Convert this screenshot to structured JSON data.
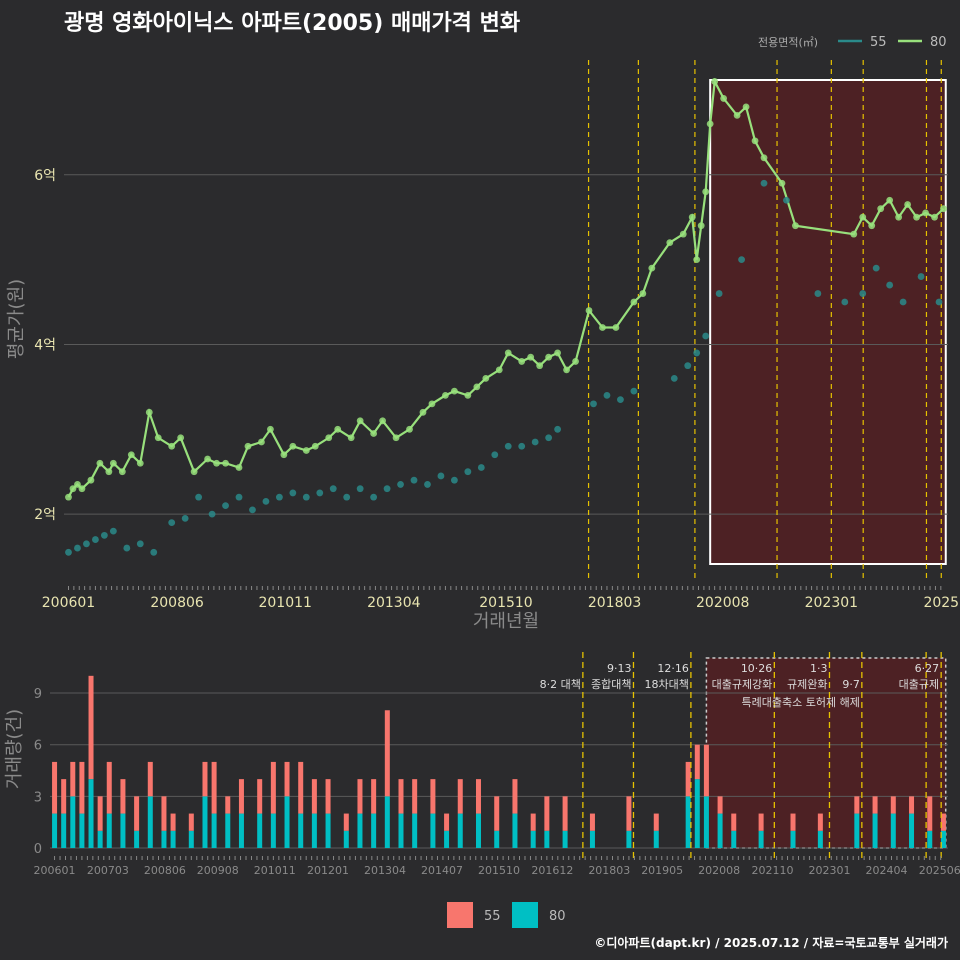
{
  "title": "광명 영화아이닉스 아파트(2005) 매매가격 변화",
  "footer": "©디아파트(dapt.kr) / 2025.07.12 / 자료=국토교통부 실거래가",
  "colors": {
    "background": "#2b2b2d",
    "series55": "#2a8a8a",
    "series80": "#98e07c",
    "bar55": "#f8766d",
    "bar80": "#00bfc4",
    "event_line": "#e6c200",
    "highlight_fill": "#5a1f22",
    "highlight_border": "#ffffff"
  },
  "legend_top": {
    "title": "전용면적(㎡)",
    "items": [
      "55",
      "80"
    ]
  },
  "legend_bottom": {
    "items": [
      "55",
      "80"
    ]
  },
  "chart_data": [
    {
      "type": "line",
      "title": "광명 영화아이닉스 아파트(2005) 매매가격 변화",
      "xlabel": "거래년월",
      "ylabel": "평균가(원)",
      "x_tick_labels": [
        "200601",
        "200806",
        "201011",
        "201304",
        "201510",
        "201803",
        "202008",
        "202301",
        "2025"
      ],
      "y_tick_labels": [
        "2억",
        "4억",
        "6억"
      ],
      "y_ticks": [
        2,
        4,
        6
      ],
      "ylim": [
        1.2,
        7.4
      ],
      "xlim": [
        2005.9,
        2025.6
      ],
      "y_unit": "억원",
      "grid": true,
      "legend_position": "top-right",
      "highlight_range": [
        2020.3,
        2025.55
      ],
      "event_lines": [
        2017.59,
        2018.7,
        2019.96,
        2021.79,
        2023.0,
        2023.71,
        2025.12,
        2025.45
      ],
      "series": [
        {
          "name": "80",
          "x": [
            2006.0,
            2006.1,
            2006.2,
            2006.3,
            2006.5,
            2006.7,
            2006.9,
            2007.0,
            2007.2,
            2007.4,
            2007.6,
            2007.8,
            2008.0,
            2008.3,
            2008.5,
            2008.8,
            2009.1,
            2009.3,
            2009.5,
            2009.8,
            2010.0,
            2010.3,
            2010.5,
            2010.8,
            2011.0,
            2011.3,
            2011.5,
            2011.8,
            2012.0,
            2012.3,
            2012.5,
            2012.8,
            2013.0,
            2013.3,
            2013.6,
            2013.9,
            2014.1,
            2014.4,
            2014.6,
            2014.9,
            2015.1,
            2015.3,
            2015.6,
            2015.8,
            2016.1,
            2016.3,
            2016.5,
            2016.7,
            2016.9,
            2017.1,
            2017.3,
            2017.6,
            2017.9,
            2018.2,
            2018.6,
            2018.8,
            2019.0,
            2019.4,
            2019.7,
            2019.9,
            2020.0,
            2020.1,
            2020.2,
            2020.3,
            2020.4,
            2020.6,
            2020.9,
            2021.1,
            2021.3,
            2021.5,
            2021.9,
            2022.2,
            2023.5,
            2023.7,
            2023.9,
            2024.1,
            2024.3,
            2024.5,
            2024.7,
            2024.9,
            2025.1,
            2025.3,
            2025.5
          ],
          "values": [
            2.2,
            2.3,
            2.35,
            2.3,
            2.4,
            2.6,
            2.5,
            2.6,
            2.5,
            2.7,
            2.6,
            3.2,
            2.9,
            2.8,
            2.9,
            2.5,
            2.65,
            2.6,
            2.6,
            2.55,
            2.8,
            2.85,
            3.0,
            2.7,
            2.8,
            2.75,
            2.8,
            2.9,
            3.0,
            2.9,
            3.1,
            2.95,
            3.1,
            2.9,
            3.0,
            3.2,
            3.3,
            3.4,
            3.45,
            3.4,
            3.5,
            3.6,
            3.7,
            3.9,
            3.8,
            3.85,
            3.75,
            3.85,
            3.9,
            3.7,
            3.8,
            4.4,
            4.2,
            4.2,
            4.5,
            4.6,
            4.9,
            5.2,
            5.3,
            5.5,
            5.0,
            5.4,
            5.8,
            6.6,
            7.1,
            6.9,
            6.7,
            6.8,
            6.4,
            6.2,
            5.9,
            5.4,
            5.3,
            5.5,
            5.4,
            5.6,
            5.7,
            5.5,
            5.65,
            5.5,
            5.55,
            5.5,
            5.6
          ]
        },
        {
          "name": "55",
          "x": [
            2006.0,
            2006.2,
            2006.4,
            2006.6,
            2006.8,
            2007.0,
            2007.3,
            2007.6,
            2007.9,
            2008.3,
            2008.6,
            2008.9,
            2009.2,
            2009.5,
            2009.8,
            2010.1,
            2010.4,
            2010.7,
            2011.0,
            2011.3,
            2011.6,
            2011.9,
            2012.2,
            2012.5,
            2012.8,
            2013.1,
            2013.4,
            2013.7,
            2014.0,
            2014.3,
            2014.6,
            2014.9,
            2015.2,
            2015.5,
            2015.8,
            2016.1,
            2016.4,
            2016.7,
            2016.9,
            2017.7,
            2018.0,
            2018.3,
            2018.6,
            2019.5,
            2019.8,
            2020.0,
            2020.2,
            2020.5,
            2021.0,
            2021.5,
            2022.0,
            2022.7,
            2023.3,
            2023.7,
            2024.0,
            2024.3,
            2024.6,
            2025.0,
            2025.4
          ],
          "values": [
            1.55,
            1.6,
            1.65,
            1.7,
            1.75,
            1.8,
            1.6,
            1.65,
            1.55,
            1.9,
            1.95,
            2.2,
            2.0,
            2.1,
            2.2,
            2.05,
            2.15,
            2.2,
            2.25,
            2.2,
            2.25,
            2.3,
            2.2,
            2.3,
            2.2,
            2.3,
            2.35,
            2.4,
            2.35,
            2.45,
            2.4,
            2.5,
            2.55,
            2.7,
            2.8,
            2.8,
            2.85,
            2.9,
            3.0,
            3.3,
            3.4,
            3.35,
            3.45,
            3.6,
            3.75,
            3.9,
            4.1,
            4.6,
            5.0,
            5.9,
            5.7,
            4.6,
            4.5,
            4.6,
            4.9,
            4.7,
            4.5,
            4.8,
            4.5
          ]
        }
      ]
    },
    {
      "type": "bar",
      "xlabel": "",
      "ylabel": "거래량(건)",
      "stacked": true,
      "y_ticks": [
        0,
        3,
        6,
        9
      ],
      "ylim": [
        0,
        11.5
      ],
      "xlim": [
        2005.9,
        2025.6
      ],
      "x_tick_labels": [
        "200601",
        "200703",
        "200806",
        "200908",
        "201011",
        "201201",
        "201304",
        "201407",
        "201510",
        "201612",
        "201803",
        "201905",
        "202008",
        "202110",
        "202301",
        "202404",
        "202506"
      ],
      "legend_position": "bottom",
      "highlight_range": [
        2020.3,
        2025.55
      ],
      "event_lines": [
        2017.59,
        2018.7,
        2019.96,
        2021.79,
        2023.0,
        2023.71,
        2025.12,
        2025.45
      ],
      "annotations": [
        {
          "label": "8·2 대책",
          "x": 2017.59,
          "row": 1
        },
        {
          "label": "9·13",
          "x": 2018.7,
          "row": 0
        },
        {
          "label": "종합대책",
          "x": 2018.7,
          "row": 1
        },
        {
          "label": "12·16",
          "x": 2019.96,
          "row": 0
        },
        {
          "label": "18차대책",
          "x": 2019.96,
          "row": 1
        },
        {
          "label": "10·26",
          "x": 2021.79,
          "row": 0
        },
        {
          "label": "대출규제강화",
          "x": 2021.79,
          "row": 1
        },
        {
          "label": "1·3",
          "x": 2023.0,
          "row": 0
        },
        {
          "label": "규제완화",
          "x": 2023.0,
          "row": 1
        },
        {
          "label": "9·7",
          "x": 2023.71,
          "row": 1
        },
        {
          "label": "특례대출축소 토허제 해제",
          "x": 2023.71,
          "row": 2
        },
        {
          "label": "6·27",
          "x": 2025.45,
          "row": 0
        },
        {
          "label": "대출규제",
          "x": 2025.45,
          "row": 1
        }
      ],
      "series": [
        {
          "name": "55",
          "x": [
            2006.0,
            2006.2,
            2006.4,
            2006.6,
            2006.8,
            2007.0,
            2007.2,
            2007.5,
            2007.8,
            2008.1,
            2008.4,
            2008.6,
            2009.0,
            2009.3,
            2009.5,
            2009.8,
            2010.1,
            2010.5,
            2010.8,
            2011.1,
            2011.4,
            2011.7,
            2012.0,
            2012.4,
            2012.7,
            2013.0,
            2013.3,
            2013.6,
            2013.9,
            2014.3,
            2014.6,
            2014.9,
            2015.3,
            2015.7,
            2016.1,
            2016.5,
            2016.8,
            2017.2,
            2017.8,
            2018.6,
            2019.2,
            2019.9,
            2020.1,
            2020.3,
            2020.6,
            2020.9,
            2021.5,
            2022.2,
            2022.8,
            2023.6,
            2024.0,
            2024.4,
            2024.8,
            2025.2,
            2025.5
          ],
          "values": [
            3,
            2,
            2,
            3,
            6,
            2,
            3,
            2,
            2,
            2,
            2,
            1,
            1,
            2,
            3,
            1,
            2,
            2,
            3,
            2,
            3,
            2,
            2,
            1,
            2,
            2,
            5,
            2,
            2,
            2,
            1,
            2,
            2,
            2,
            2,
            1,
            2,
            2,
            1,
            2,
            1,
            2,
            2,
            3,
            1,
            1,
            1,
            1,
            1,
            1,
            1,
            1,
            1,
            2,
            1
          ]
        },
        {
          "name": "80",
          "x": [
            2006.0,
            2006.2,
            2006.4,
            2006.6,
            2006.8,
            2007.0,
            2007.2,
            2007.5,
            2007.8,
            2008.1,
            2008.4,
            2008.6,
            2009.0,
            2009.3,
            2009.5,
            2009.8,
            2010.1,
            2010.5,
            2010.8,
            2011.1,
            2011.4,
            2011.7,
            2012.0,
            2012.4,
            2012.7,
            2013.0,
            2013.3,
            2013.6,
            2013.9,
            2014.3,
            2014.6,
            2014.9,
            2015.3,
            2015.7,
            2016.1,
            2016.5,
            2016.8,
            2017.2,
            2017.8,
            2018.6,
            2019.2,
            2019.9,
            2020.1,
            2020.3,
            2020.6,
            2020.9,
            2021.5,
            2022.2,
            2022.8,
            2023.6,
            2024.0,
            2024.4,
            2024.8,
            2025.2,
            2025.5
          ],
          "values": [
            2,
            2,
            3,
            2,
            4,
            1,
            2,
            2,
            1,
            3,
            1,
            1,
            1,
            3,
            2,
            2,
            2,
            2,
            2,
            3,
            2,
            2,
            2,
            1,
            2,
            2,
            3,
            2,
            2,
            2,
            1,
            2,
            2,
            1,
            2,
            1,
            1,
            1,
            1,
            1,
            1,
            3,
            4,
            3,
            2,
            1,
            1,
            1,
            1,
            2,
            2,
            2,
            2,
            1,
            1
          ]
        }
      ]
    }
  ]
}
